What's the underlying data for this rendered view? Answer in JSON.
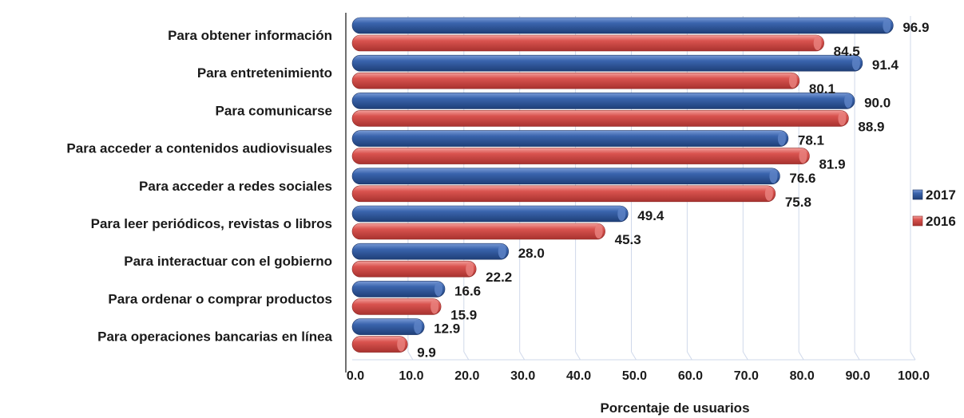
{
  "chart_data": {
    "type": "bar",
    "orientation": "horizontal",
    "categories": [
      "Para obtener información",
      "Para entretenimiento",
      "Para comunicarse",
      "Para acceder a contenidos audiovisuales",
      "Para acceder a redes sociales",
      "Para leer periódicos, revistas o libros",
      "Para interactuar con el gobierno",
      "Para ordenar o comprar productos",
      "Para operaciones bancarias en línea"
    ],
    "series": [
      {
        "name": "2017",
        "color": "#2f5597",
        "values": [
          96.9,
          91.4,
          90.0,
          78.1,
          76.6,
          49.4,
          28.0,
          16.6,
          12.9
        ]
      },
      {
        "name": "2016",
        "color": "#d9534f",
        "values": [
          84.5,
          80.1,
          88.9,
          81.9,
          75.8,
          45.3,
          22.2,
          15.9,
          9.9
        ]
      }
    ],
    "value_labels": {
      "2017": [
        "96.9",
        "91.4",
        "90.0",
        "78.1",
        "76.6",
        "49.4",
        "28.0",
        "16.6",
        "12.9"
      ],
      "2016": [
        "84.5",
        "80.1",
        "88.9",
        "81.9",
        "75.8",
        "45.3",
        "22.2",
        "15.9",
        "9.9"
      ]
    },
    "xlim": [
      0,
      100
    ],
    "xticks": [
      0,
      10,
      20,
      30,
      40,
      50,
      60,
      70,
      80,
      90,
      100
    ],
    "xtick_labels": [
      "0.0",
      "10.0",
      "20.0",
      "30.0",
      "40.0",
      "50.0",
      "60.0",
      "70.0",
      "80.0",
      "90.0",
      "100.0"
    ],
    "xlabel": "Porcentaje de usuarios",
    "title": "",
    "grid": true,
    "legend_position": "right"
  }
}
